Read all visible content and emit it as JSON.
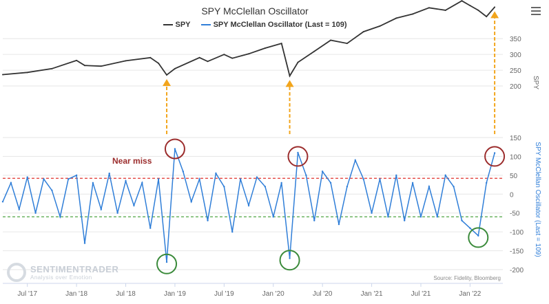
{
  "title": "SPY McClellan Oscillator",
  "menu_icon": "hamburger-menu-icon",
  "legend": [
    {
      "label": "SPY",
      "color": "#333333"
    },
    {
      "label": "SPY McClellan Oscillator (Last = 109)",
      "color": "#2f7ed8"
    }
  ],
  "annotation": {
    "near_miss": "Near miss"
  },
  "watermark": {
    "brand": "SENTIMENTRADER",
    "tagline": "Analysis over Emotion"
  },
  "source": "Source: Fidelity, Bloomberg",
  "colors": {
    "spy_line": "#333333",
    "osc_line": "#2f7ed8",
    "upper_threshold": "#e0302b",
    "lower_threshold": "#3a9a2c",
    "arrow": "#f2a51c",
    "red_circle": "#9b2c2c",
    "green_circle": "#3a8a3a",
    "near_miss_text": "#9b2c2c"
  },
  "chart_data": {
    "type": "line",
    "x_tick_labels": [
      "Jul '17",
      "Jan '18",
      "Jul '18",
      "Jan '19",
      "Jul '19",
      "Jan '20",
      "Jul '20",
      "Jan '21",
      "Jul '21",
      "Jan '22"
    ],
    "x_range": [
      "2017-04",
      "2022-05"
    ],
    "spy_axis": {
      "title": "SPY",
      "ticks": [
        200,
        250,
        300,
        350
      ],
      "tick_labels": [
        "200",
        "250",
        "300",
        "350"
      ],
      "range": [
        150,
        490
      ]
    },
    "osc_axis": {
      "title": "SPY McClellan Oscillator (Last = 109)",
      "ticks": [
        -200,
        -150,
        -100,
        -50,
        0,
        50,
        100,
        150
      ],
      "tick_labels": [
        "-200",
        "-150",
        "-100",
        "-50",
        "0",
        "50",
        "100",
        "150"
      ],
      "range": [
        -200,
        150
      ]
    },
    "thresholds": {
      "upper": 42,
      "lower": -60
    },
    "series": [
      {
        "name": "SPY",
        "axis": "spy",
        "points": [
          [
            "2017-04",
            236
          ],
          [
            "2017-07",
            243
          ],
          [
            "2017-10",
            255
          ],
          [
            "2018-01",
            281
          ],
          [
            "2018-02",
            265
          ],
          [
            "2018-04",
            263
          ],
          [
            "2018-07",
            280
          ],
          [
            "2018-10",
            290
          ],
          [
            "2018-11",
            272
          ],
          [
            "2018-12",
            235
          ],
          [
            "2019-01",
            255
          ],
          [
            "2019-04",
            290
          ],
          [
            "2019-05",
            278
          ],
          [
            "2019-07",
            300
          ],
          [
            "2019-08",
            288
          ],
          [
            "2019-10",
            302
          ],
          [
            "2019-12",
            320
          ],
          [
            "2020-02",
            335
          ],
          [
            "2020-03",
            232
          ],
          [
            "2020-04",
            275
          ],
          [
            "2020-06",
            310
          ],
          [
            "2020-08",
            345
          ],
          [
            "2020-10",
            335
          ],
          [
            "2020-12",
            372
          ],
          [
            "2021-02",
            390
          ],
          [
            "2021-04",
            415
          ],
          [
            "2021-06",
            428
          ],
          [
            "2021-08",
            448
          ],
          [
            "2021-10",
            440
          ],
          [
            "2021-12",
            470
          ],
          [
            "2022-01",
            455
          ],
          [
            "2022-02",
            440
          ],
          [
            "2022-03",
            420
          ],
          [
            "2022-04",
            450
          ]
        ]
      },
      {
        "name": "SPY McClellan Oscillator",
        "axis": "osc",
        "points": [
          [
            "2017-04",
            -20
          ],
          [
            "2017-05",
            30
          ],
          [
            "2017-06",
            -40
          ],
          [
            "2017-07",
            45
          ],
          [
            "2017-08",
            -50
          ],
          [
            "2017-09",
            40
          ],
          [
            "2017-10",
            10
          ],
          [
            "2017-11",
            -60
          ],
          [
            "2017-12",
            40
          ],
          [
            "2018-01",
            50
          ],
          [
            "2018-02",
            -130
          ],
          [
            "2018-03",
            30
          ],
          [
            "2018-04",
            -40
          ],
          [
            "2018-05",
            55
          ],
          [
            "2018-06",
            -50
          ],
          [
            "2018-07",
            35
          ],
          [
            "2018-08",
            -30
          ],
          [
            "2018-09",
            30
          ],
          [
            "2018-10",
            -90
          ],
          [
            "2018-11",
            40
          ],
          [
            "2018-12",
            -180
          ],
          [
            "2019-01",
            120
          ],
          [
            "2019-02",
            60
          ],
          [
            "2019-03",
            -20
          ],
          [
            "2019-04",
            40
          ],
          [
            "2019-05",
            -70
          ],
          [
            "2019-06",
            55
          ],
          [
            "2019-07",
            20
          ],
          [
            "2019-08",
            -100
          ],
          [
            "2019-09",
            40
          ],
          [
            "2019-10",
            -30
          ],
          [
            "2019-11",
            45
          ],
          [
            "2019-12",
            20
          ],
          [
            "2020-01",
            -60
          ],
          [
            "2020-02",
            30
          ],
          [
            "2020-03",
            -170
          ],
          [
            "2020-04",
            110
          ],
          [
            "2020-05",
            50
          ],
          [
            "2020-06",
            -70
          ],
          [
            "2020-07",
            60
          ],
          [
            "2020-08",
            30
          ],
          [
            "2020-09",
            -80
          ],
          [
            "2020-10",
            20
          ],
          [
            "2020-11",
            90
          ],
          [
            "2020-12",
            40
          ],
          [
            "2021-01",
            -50
          ],
          [
            "2021-02",
            40
          ],
          [
            "2021-03",
            -60
          ],
          [
            "2021-04",
            50
          ],
          [
            "2021-05",
            -70
          ],
          [
            "2021-06",
            30
          ],
          [
            "2021-07",
            -60
          ],
          [
            "2021-08",
            20
          ],
          [
            "2021-09",
            -60
          ],
          [
            "2021-10",
            50
          ],
          [
            "2021-11",
            20
          ],
          [
            "2021-12",
            -70
          ],
          [
            "2022-01",
            -90
          ],
          [
            "2022-02",
            -110
          ],
          [
            "2022-03",
            30
          ],
          [
            "2022-04",
            109
          ]
        ]
      }
    ],
    "annotations": {
      "arrows": [
        "2018-12",
        "2020-03",
        "2022-04"
      ],
      "red_circles": [
        [
          "2019-01",
          120
        ],
        [
          "2020-04",
          100
        ],
        [
          "2022-04",
          100
        ]
      ],
      "green_circles": [
        [
          "2018-12",
          -185
        ],
        [
          "2020-03",
          -175
        ],
        [
          "2022-02",
          -115
        ]
      ]
    }
  }
}
